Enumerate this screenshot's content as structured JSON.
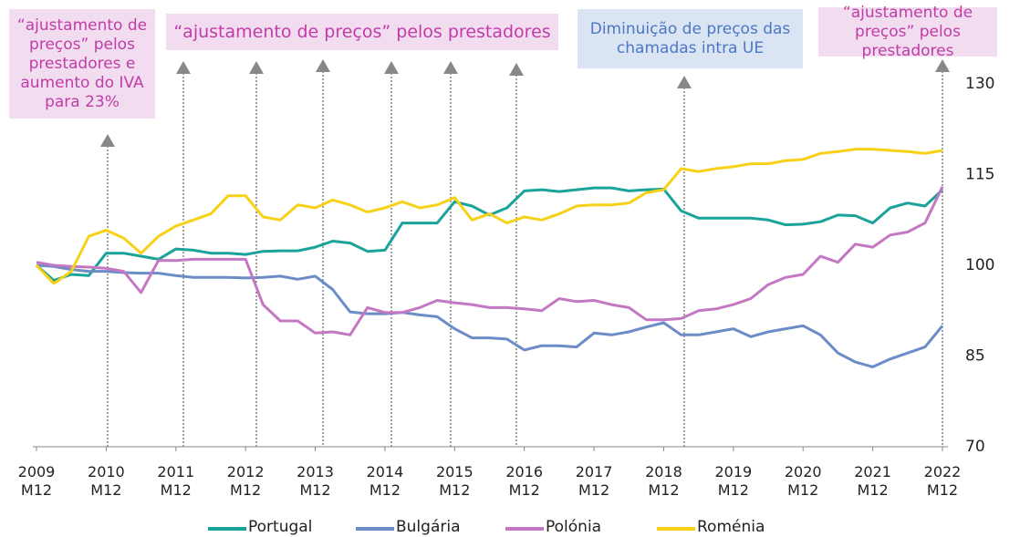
{
  "chart_data": {
    "type": "line",
    "categories": [
      "2009 M12",
      null,
      null,
      null,
      "2010 M12",
      null,
      null,
      null,
      "2011 M12",
      null,
      null,
      null,
      "2012 M12",
      null,
      null,
      null,
      "2013 M12",
      null,
      null,
      null,
      "2014 M12",
      null,
      null,
      null,
      "2015 M12",
      null,
      null,
      null,
      "2016 M12",
      null,
      null,
      null,
      "2017 M12",
      null,
      null,
      null,
      "2018 M12",
      null,
      null,
      null,
      "2019 M12",
      null,
      null,
      null,
      "2020 M12",
      null,
      null,
      null,
      "2021 M12",
      null,
      null,
      null,
      "2022 M12"
    ],
    "series": [
      {
        "name": "Portugal",
        "color": "#1aa39a",
        "values": [
          100,
          97.5,
          98.5,
          98.3,
          102,
          102,
          101.5,
          101,
          102.7,
          102.5,
          102,
          102,
          101.8,
          102.3,
          102.4,
          102.4,
          103,
          104,
          103.7,
          102.3,
          102.5,
          107,
          107,
          107,
          110.5,
          109.8,
          108.3,
          109.5,
          112.3,
          112.5,
          112.2,
          112.5,
          112.8,
          112.8,
          112.3,
          112.5,
          112.6,
          109,
          107.8,
          107.8,
          107.8,
          107.8,
          107.5,
          106.7,
          106.8,
          107.2,
          108.3,
          108.2,
          107,
          109.5,
          110.3,
          109.8,
          112.5
        ]
      },
      {
        "name": "Bulgária",
        "color": "#6b8cc7",
        "values": [
          100,
          99.8,
          99.3,
          99,
          99,
          98.8,
          98.7,
          98.7,
          98.3,
          98,
          98,
          98,
          97.9,
          98,
          98.2,
          97.7,
          98.2,
          96,
          92.3,
          92,
          92,
          92.2,
          91.8,
          91.5,
          89.5,
          88,
          88,
          87.8,
          86,
          86.7,
          86.7,
          86.5,
          88.8,
          88.5,
          89,
          89.8,
          90.5,
          88.5,
          88.5,
          89,
          89.5,
          88.2,
          89,
          89.5,
          90,
          88.5,
          85.5,
          84,
          83.2,
          84.5,
          85.5,
          86.5,
          90
        ]
      },
      {
        "name": "Polónia",
        "color": "#c478c4",
        "values": [
          100.5,
          100,
          99.8,
          99.7,
          99.5,
          99,
          95.5,
          100.8,
          100.8,
          101,
          101,
          101,
          101,
          93.5,
          90.8,
          90.8,
          88.8,
          89,
          88.5,
          93,
          92.2,
          92.2,
          93,
          94.2,
          93.8,
          93.5,
          93,
          93,
          92.8,
          92.5,
          94.5,
          94,
          94.2,
          93.5,
          93,
          91,
          91,
          91.2,
          92.5,
          92.8,
          93.5,
          94.5,
          96.8,
          98,
          98.5,
          101.5,
          100.5,
          103.5,
          103,
          105,
          105.5,
          107,
          113
        ]
      },
      {
        "name": "Roménia",
        "color": "#f7d117",
        "values": [
          100,
          97,
          99,
          104.8,
          105.8,
          104.5,
          102,
          104.8,
          106.5,
          107.5,
          108.5,
          111.5,
          111.5,
          108,
          107.5,
          110,
          109.5,
          110.8,
          110,
          108.8,
          109.5,
          110.5,
          109.5,
          110,
          111.2,
          107.5,
          108.5,
          107,
          108,
          107.5,
          108.5,
          109.8,
          110,
          110,
          110.3,
          112,
          112.5,
          116,
          115.5,
          116,
          116.3,
          116.8,
          116.8,
          117.3,
          117.5,
          118.5,
          118.8,
          119.2,
          119.2,
          119,
          118.8,
          118.5,
          119
        ]
      }
    ],
    "ylim": [
      70,
      130
    ],
    "yticks": [
      70,
      85,
      100,
      115,
      130
    ],
    "annotations": [
      "“ajustamento de preços” pelos prestadores e aumento do IVA para 23%",
      "“ajustamento de preços” pelos prestadores",
      "Diminuição de preços das chamadas intra UE",
      "“ajustamento de preços” pelos prestadores"
    ]
  }
}
